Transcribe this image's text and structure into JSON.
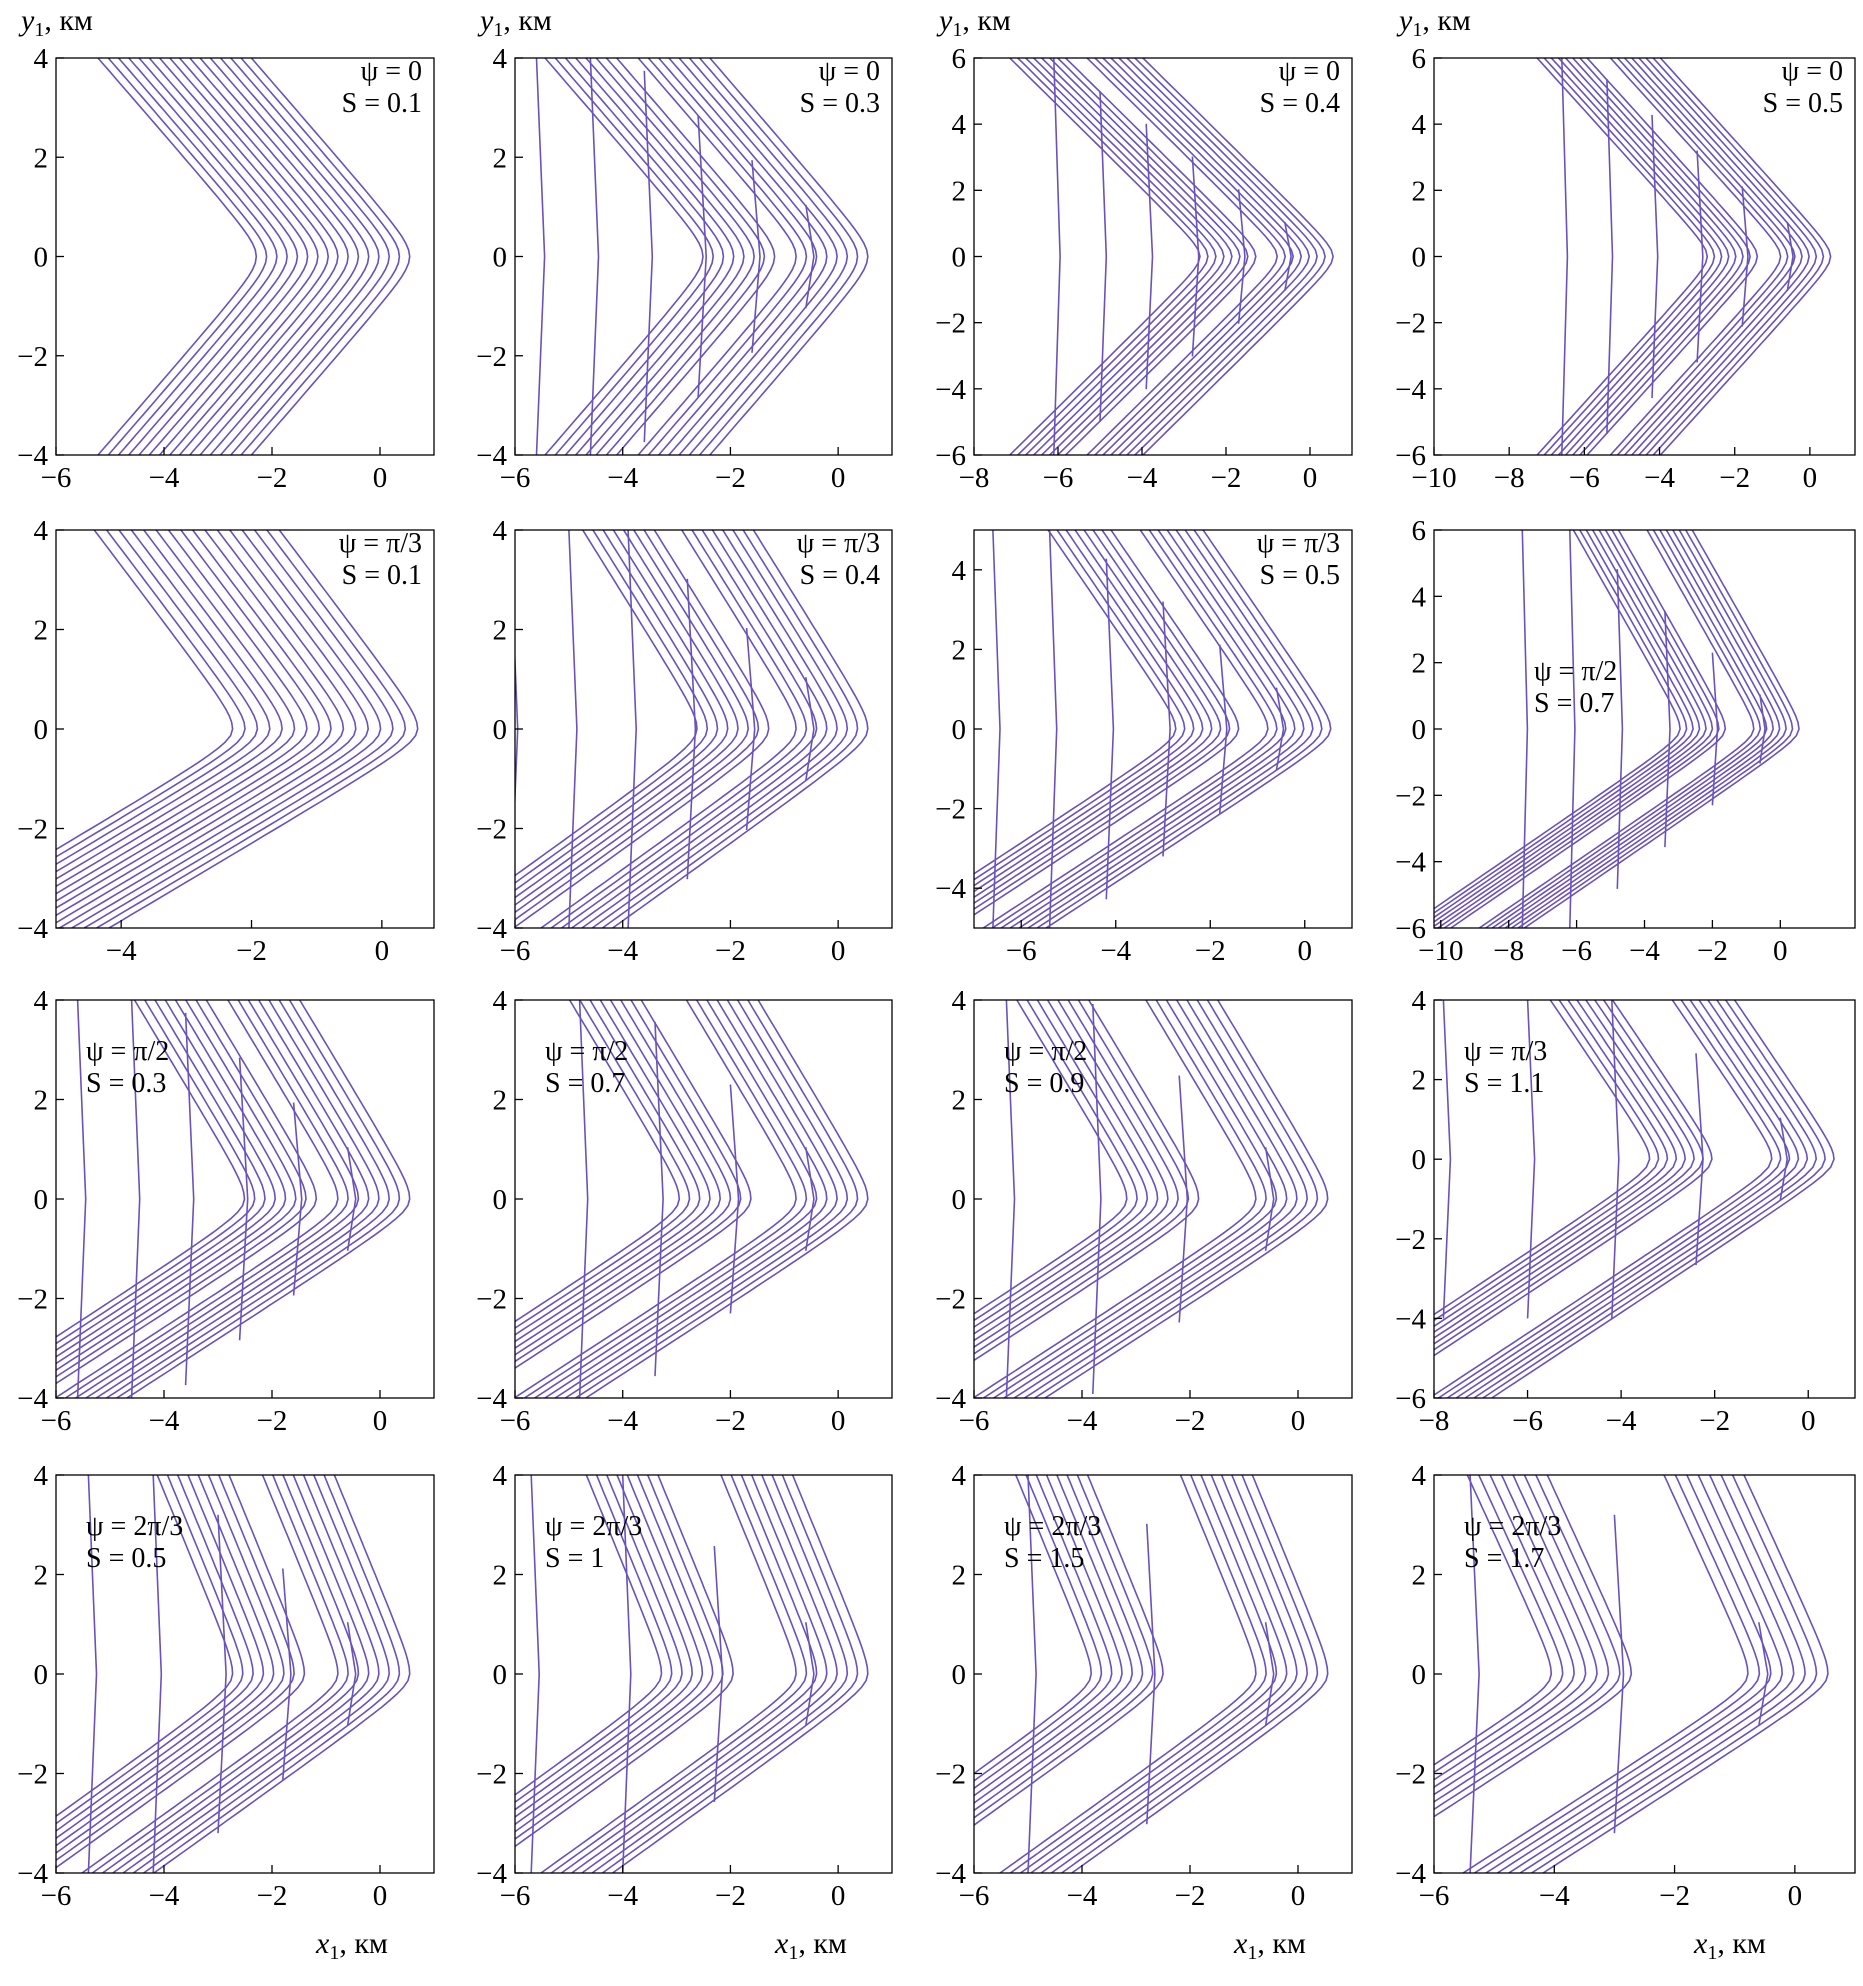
{
  "style": {
    "line_color": "#6a52b8"
  },
  "chart_data": [
    {
      "type": "line",
      "ylabel": "y",
      "ylabel_sub": "1",
      "ylabel_unit": ", км",
      "xlim": [
        -6,
        1
      ],
      "ylim": [
        -4,
        4
      ],
      "xticks": [
        -6,
        -4,
        -2,
        0
      ],
      "yticks": [
        -4,
        -2,
        0,
        2,
        4
      ],
      "psi": "ψ = 0",
      "s": "S = 0.1",
      "S_value": 0.1,
      "psi_value": 0
    },
    {
      "type": "line",
      "ylabel": "y",
      "ylabel_sub": "1",
      "ylabel_unit": ", км",
      "xlim": [
        -6,
        1
      ],
      "ylim": [
        -4,
        4
      ],
      "xticks": [
        -6,
        -4,
        -2,
        0
      ],
      "yticks": [
        -4,
        -2,
        0,
        2,
        4
      ],
      "psi": "ψ = 0",
      "s": "S = 0.3",
      "S_value": 0.3,
      "psi_value": 0
    },
    {
      "type": "line",
      "ylabel": "y",
      "ylabel_sub": "1",
      "ylabel_unit": ", км",
      "xlim": [
        -8,
        1
      ],
      "ylim": [
        -6,
        6
      ],
      "xticks": [
        -8,
        -6,
        -4,
        -2,
        0
      ],
      "yticks": [
        -6,
        -4,
        -2,
        0,
        2,
        4,
        6
      ],
      "psi": "ψ = 0",
      "s": "S = 0.4",
      "S_value": 0.4,
      "psi_value": 0
    },
    {
      "type": "line",
      "ylabel": "y",
      "ylabel_sub": "1",
      "ylabel_unit": ", км",
      "xlim": [
        -10,
        1.2
      ],
      "ylim": [
        -6,
        6
      ],
      "xticks": [
        -10,
        -8,
        -6,
        -4,
        -2,
        0
      ],
      "yticks": [
        -6,
        -4,
        -2,
        0,
        2,
        4,
        6
      ],
      "psi": "ψ = 0",
      "s": "S = 0.5",
      "S_value": 0.5,
      "psi_value": 0
    },
    {
      "type": "line",
      "xlim": [
        -5,
        0.8
      ],
      "ylim": [
        -4,
        4
      ],
      "xticks": [
        -4,
        -2,
        0
      ],
      "yticks": [
        -4,
        -2,
        0,
        2,
        4
      ],
      "psi": "ψ = π/3",
      "s": "S = 0.1",
      "S_value": 0.1,
      "psi_value": 1.047
    },
    {
      "type": "line",
      "xlim": [
        -6,
        1
      ],
      "ylim": [
        -4,
        4
      ],
      "xticks": [
        -6,
        -4,
        -2,
        0
      ],
      "yticks": [
        -4,
        -2,
        0,
        2,
        4
      ],
      "psi": "ψ = π/3",
      "s": "S = 0.4",
      "S_value": 0.4,
      "psi_value": 1.047
    },
    {
      "type": "line",
      "xlim": [
        -7,
        1
      ],
      "ylim": [
        -5,
        5
      ],
      "xticks": [
        -6,
        -4,
        -2,
        0
      ],
      "yticks": [
        -4,
        -2,
        0,
        2,
        4
      ],
      "psi": "ψ = π/3",
      "s": "S = 0.5",
      "S_value": 0.5,
      "psi_value": 1.047
    },
    {
      "type": "line",
      "xlim": [
        -10.2,
        2.2
      ],
      "ylim": [
        -6,
        6
      ],
      "xticks": [
        -10,
        -8,
        -6,
        -4,
        -2,
        0
      ],
      "yticks": [
        -6,
        -4,
        -2,
        0,
        2,
        4,
        6
      ],
      "psi": "ψ = π/2",
      "s": "S = 0.7",
      "S_value": 0.7,
      "psi_value": 1.571,
      "anno_pos": "middle-left"
    },
    {
      "type": "line",
      "xlim": [
        -6,
        1
      ],
      "ylim": [
        -4,
        4
      ],
      "xticks": [
        -6,
        -4,
        -2,
        0
      ],
      "yticks": [
        -4,
        -2,
        0,
        2,
        4
      ],
      "psi": "ψ = π/2",
      "s": "S = 0.3",
      "S_value": 0.3,
      "psi_value": 1.571,
      "anno_pos": "upper-left"
    },
    {
      "type": "line",
      "xlim": [
        -6,
        1
      ],
      "ylim": [
        -4,
        4
      ],
      "xticks": [
        -6,
        -4,
        -2,
        0
      ],
      "yticks": [
        -4,
        -2,
        0,
        2,
        4
      ],
      "psi": "ψ = π/2",
      "s": "S = 0.7",
      "S_value": 0.7,
      "psi_value": 1.571,
      "anno_pos": "upper-left"
    },
    {
      "type": "line",
      "xlim": [
        -6,
        1
      ],
      "ylim": [
        -4,
        4
      ],
      "xticks": [
        -6,
        -4,
        -2,
        0
      ],
      "yticks": [
        -4,
        -2,
        0,
        2,
        4
      ],
      "psi": "ψ = π/2",
      "s": "S = 0.9",
      "S_value": 0.9,
      "psi_value": 1.571,
      "anno_pos": "upper-left"
    },
    {
      "type": "line",
      "xlim": [
        -8,
        1
      ],
      "ylim": [
        -6,
        4
      ],
      "xticks": [
        -8,
        -6,
        -4,
        -2,
        0
      ],
      "yticks": [
        -6,
        -4,
        -2,
        0,
        2,
        4
      ],
      "psi": "ψ = π/3",
      "s": "S = 1.1",
      "S_value": 1.1,
      "psi_value": 1.047,
      "anno_pos": "upper-left"
    },
    {
      "type": "line",
      "xlabel": "x",
      "xlabel_sub": "1",
      "xlabel_unit": ", км",
      "xlim": [
        -6,
        1
      ],
      "ylim": [
        -4,
        4
      ],
      "xticks": [
        -6,
        -4,
        -2,
        0
      ],
      "yticks": [
        -4,
        -2,
        0,
        2,
        4
      ],
      "psi": "ψ = 2π/3",
      "s": "S = 0.5",
      "S_value": 0.5,
      "psi_value": 2.094,
      "anno_pos": "upper-left"
    },
    {
      "type": "line",
      "xlabel": "x",
      "xlabel_sub": "1",
      "xlabel_unit": ", км",
      "xlim": [
        -6,
        1
      ],
      "ylim": [
        -4,
        4
      ],
      "xticks": [
        -6,
        -4,
        -2,
        0
      ],
      "yticks": [
        -4,
        -2,
        0,
        2,
        4
      ],
      "psi": "ψ = 2π/3",
      "s": "S = 1",
      "S_value": 1,
      "psi_value": 2.094,
      "anno_pos": "upper-left"
    },
    {
      "type": "line",
      "xlabel": "x",
      "xlabel_sub": "1",
      "xlabel_unit": ", км",
      "xlim": [
        -6,
        1
      ],
      "ylim": [
        -4,
        4
      ],
      "xticks": [
        -6,
        -4,
        -2,
        0
      ],
      "yticks": [
        -4,
        -2,
        0,
        2,
        4
      ],
      "psi": "ψ = 2π/3",
      "s": "S = 1.5",
      "S_value": 1.5,
      "psi_value": 2.094,
      "anno_pos": "upper-left"
    },
    {
      "type": "line",
      "xlabel": "x",
      "xlabel_sub": "1",
      "xlabel_unit": ", км",
      "xlim": [
        -6,
        1
      ],
      "ylim": [
        -4,
        4
      ],
      "xticks": [
        -6,
        -4,
        -2,
        0
      ],
      "yticks": [
        -4,
        -2,
        0,
        2,
        4
      ],
      "psi": "ψ = 2π/3",
      "s": "S = 1.7",
      "S_value": 1.7,
      "psi_value": 2.094,
      "anno_pos": "upper-left"
    }
  ]
}
